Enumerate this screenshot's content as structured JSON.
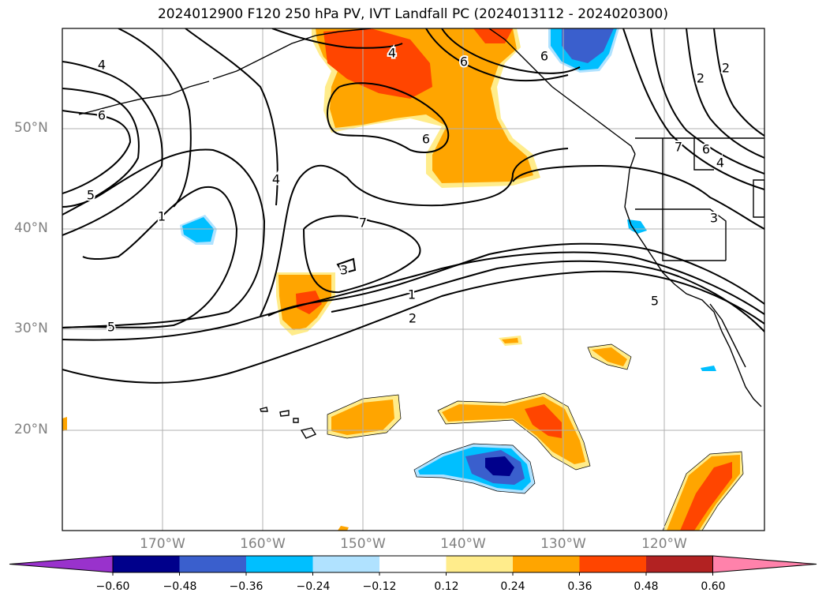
{
  "title": "2024012900 F120 250 hPa PV, IVT Landfall PC (2024013112 - 2024020300)",
  "map": {
    "projection": "lat-lon",
    "lat_range": [
      10,
      60
    ],
    "lon_range": [
      -180,
      -110
    ],
    "lat_labels": [
      "50°N",
      "40°N",
      "30°N",
      "20°N"
    ],
    "lon_labels": [
      "170°W",
      "160°W",
      "150°W",
      "140°W",
      "130°W",
      "120°W"
    ],
    "contour_labels": [
      "4",
      "6",
      "5",
      "1",
      "4",
      "6",
      "7",
      "3",
      "1",
      "2",
      "5",
      "4",
      "6",
      "7",
      "6",
      "3",
      "2",
      "5",
      "4",
      "6",
      "2"
    ],
    "colors": {
      "contour": "#000000",
      "gridline": "#b0b0b0",
      "coastline": "#000000"
    }
  },
  "colorbar": {
    "ticks": [
      "−0.60",
      "−0.48",
      "−0.36",
      "−0.24",
      "−0.12",
      "0.12",
      "0.24",
      "0.36",
      "0.48",
      "0.60"
    ],
    "colors": [
      "#9932cc",
      "#00008b",
      "#3a5fcd",
      "#00bfff",
      "#b0e2ff",
      "#ffffff",
      "#ffec8b",
      "#ffa500",
      "#ff4500",
      "#b22222",
      "#ff82ab"
    ]
  }
}
